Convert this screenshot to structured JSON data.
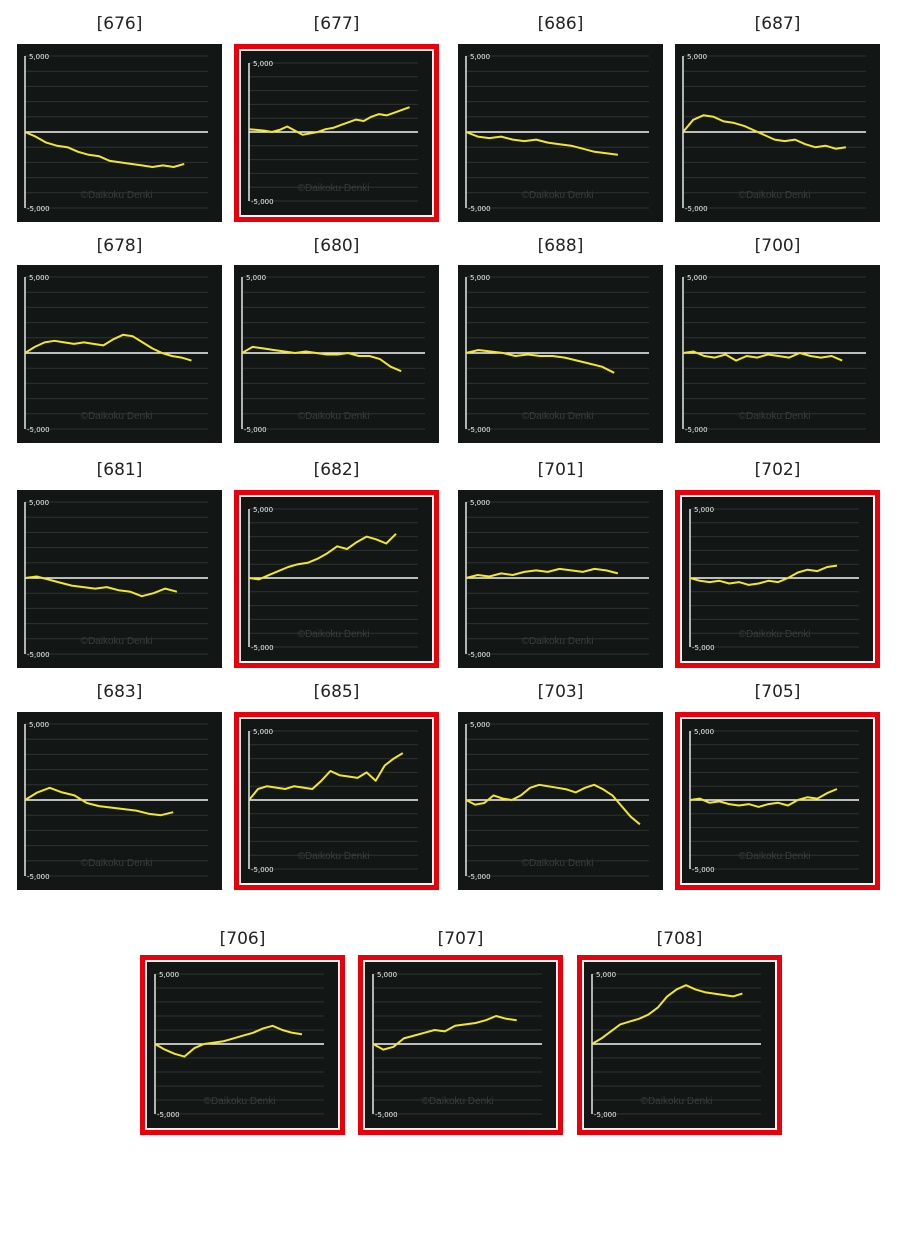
{
  "axis": {
    "ymax_label": "5,000",
    "ymin_label": "-5,000",
    "ymin": -5000,
    "ymax": 5000
  },
  "watermark": "©Daikoku Denki",
  "colors": {
    "line": "#f2e62a",
    "highlight": "#e8000b",
    "background": "#121614",
    "grid": "#2e3331",
    "baseline": "#f4f4f4"
  },
  "chart_data": [
    {
      "type": "line",
      "label": "[676]",
      "highlighted": false,
      "values": [
        0,
        -300,
        -700,
        -900,
        -1000,
        -1300,
        -1500,
        -1600,
        -1900,
        -2000,
        -2100,
        -2200,
        -2300,
        -2200,
        -2300,
        -2100
      ]
    },
    {
      "type": "line",
      "label": "[677]",
      "highlighted": true,
      "values": [
        200,
        150,
        100,
        0,
        150,
        400,
        100,
        -200,
        -100,
        0,
        200,
        300,
        500,
        700,
        900,
        800,
        1100,
        1300,
        1200,
        1400,
        1600,
        1800
      ]
    },
    {
      "type": "line",
      "label": "[686]",
      "highlighted": false,
      "values": [
        0,
        -300,
        -400,
        -300,
        -500,
        -600,
        -500,
        -700,
        -800,
        -900,
        -1100,
        -1300,
        -1400,
        -1500
      ]
    },
    {
      "type": "line",
      "label": "[687]",
      "highlighted": false,
      "values": [
        0,
        800,
        1100,
        1000,
        700,
        600,
        400,
        100,
        -200,
        -500,
        -600,
        -500,
        -800,
        -1000,
        -900,
        -1100,
        -1000
      ]
    },
    {
      "type": "line",
      "label": "[678]",
      "highlighted": false,
      "values": [
        0,
        400,
        700,
        800,
        700,
        600,
        700,
        600,
        500,
        900,
        1200,
        1100,
        700,
        300,
        0,
        -200,
        -300,
        -500
      ]
    },
    {
      "type": "line",
      "label": "[680]",
      "highlighted": false,
      "values": [
        0,
        400,
        300,
        200,
        100,
        0,
        100,
        0,
        -100,
        -100,
        0,
        -200,
        -200,
        -400,
        -900,
        -1200
      ]
    },
    {
      "type": "line",
      "label": "[688]",
      "highlighted": false,
      "values": [
        0,
        200,
        100,
        0,
        -200,
        -100,
        -200,
        -200,
        -300,
        -500,
        -700,
        -900,
        -1300
      ]
    },
    {
      "type": "line",
      "label": "[700]",
      "highlighted": false,
      "values": [
        0,
        100,
        -200,
        -300,
        -100,
        -500,
        -200,
        -300,
        -100,
        -200,
        -300,
        0,
        -200,
        -300,
        -200,
        -500
      ]
    },
    {
      "type": "line",
      "label": "[681]",
      "highlighted": false,
      "values": [
        0,
        100,
        -100,
        -300,
        -500,
        -600,
        -700,
        -600,
        -800,
        -900,
        -1200,
        -1000,
        -700,
        -900
      ]
    },
    {
      "type": "line",
      "label": "[682]",
      "highlighted": true,
      "values": [
        0,
        -100,
        200,
        500,
        800,
        1000,
        1100,
        1400,
        1800,
        2300,
        2100,
        2600,
        3000,
        2800,
        2500,
        3200
      ]
    },
    {
      "type": "line",
      "label": "[701]",
      "highlighted": false,
      "values": [
        0,
        200,
        100,
        300,
        200,
        400,
        500,
        400,
        600,
        500,
        400,
        600,
        500,
        300
      ]
    },
    {
      "type": "line",
      "label": "[702]",
      "highlighted": true,
      "values": [
        0,
        -200,
        -300,
        -200,
        -400,
        -300,
        -500,
        -400,
        -200,
        -300,
        0,
        400,
        600,
        500,
        800,
        900
      ]
    },
    {
      "type": "line",
      "label": "[683]",
      "highlighted": false,
      "values": [
        0,
        500,
        800,
        500,
        300,
        -200,
        -400,
        -500,
        -600,
        -700,
        -900,
        -1000,
        -800
      ]
    },
    {
      "type": "line",
      "label": "[685]",
      "highlighted": true,
      "values": [
        0,
        800,
        1000,
        900,
        800,
        1000,
        900,
        800,
        1400,
        2100,
        1800,
        1700,
        1600,
        2000,
        1400,
        2500,
        3000,
        3400
      ]
    },
    {
      "type": "line",
      "label": "[703]",
      "highlighted": false,
      "values": [
        0,
        -300,
        -200,
        300,
        100,
        0,
        300,
        800,
        1000,
        900,
        800,
        700,
        500,
        800,
        1000,
        700,
        300,
        -400,
        -1100,
        -1600
      ]
    },
    {
      "type": "line",
      "label": "[705]",
      "highlighted": true,
      "values": [
        0,
        100,
        -200,
        -100,
        -300,
        -400,
        -300,
        -500,
        -300,
        -200,
        -400,
        0,
        200,
        100,
        500,
        800
      ]
    },
    {
      "type": "line",
      "label": "[706]",
      "highlighted": true,
      "values": [
        0,
        -400,
        -700,
        -900,
        -300,
        0,
        100,
        200,
        400,
        600,
        800,
        1100,
        1300,
        1000,
        800,
        700
      ]
    },
    {
      "type": "line",
      "label": "[707]",
      "highlighted": true,
      "values": [
        0,
        -400,
        -200,
        400,
        600,
        800,
        1000,
        900,
        1300,
        1400,
        1500,
        1700,
        2000,
        1800,
        1700
      ]
    },
    {
      "type": "line",
      "label": "[708]",
      "highlighted": true,
      "values": [
        0,
        400,
        900,
        1400,
        1600,
        1800,
        2100,
        2600,
        3400,
        3900,
        4200,
        3900,
        3700,
        3600,
        3500,
        3400,
        3600
      ]
    }
  ]
}
